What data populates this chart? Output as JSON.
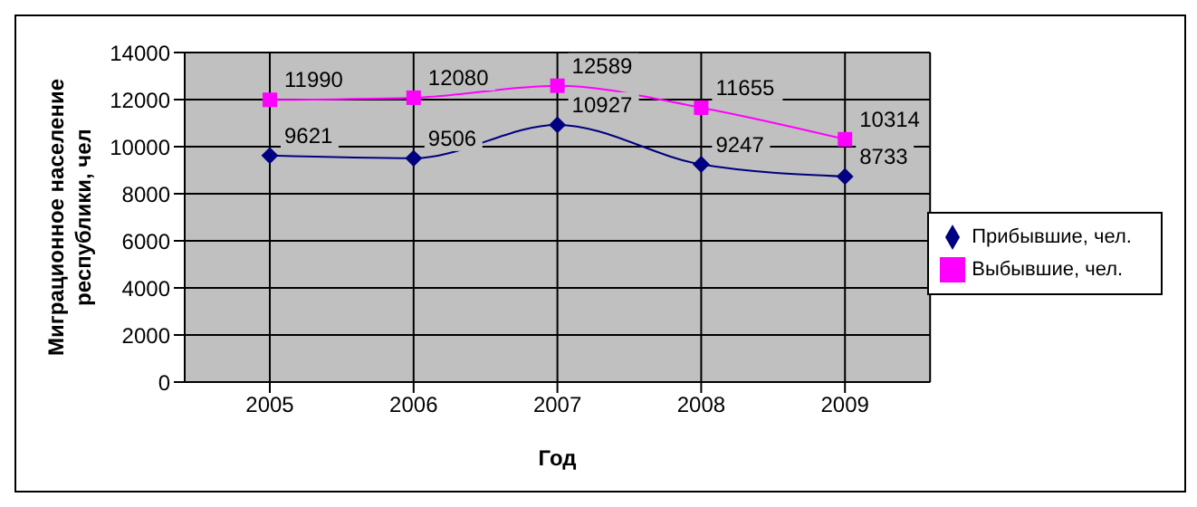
{
  "chart_data": {
    "type": "line",
    "xlabel": "Год",
    "ylabel": "Миграционное население республики, чел",
    "categories": [
      "2005",
      "2006",
      "2007",
      "2008",
      "2009"
    ],
    "series": [
      {
        "name": "Прибывшие, чел.",
        "color": "#000080",
        "marker": "diamond",
        "values": [
          9621,
          9506,
          10927,
          9247,
          8733
        ]
      },
      {
        "name": "Выбывшие, чел.",
        "color": "#ff00ff",
        "marker": "square",
        "values": [
          11990,
          12080,
          12589,
          11655,
          10314
        ]
      }
    ],
    "ylim": [
      0,
      14000
    ],
    "yticks": [
      0,
      2000,
      4000,
      6000,
      8000,
      10000,
      12000,
      14000
    ],
    "grid": true,
    "legend": "right",
    "data_labels": true
  }
}
